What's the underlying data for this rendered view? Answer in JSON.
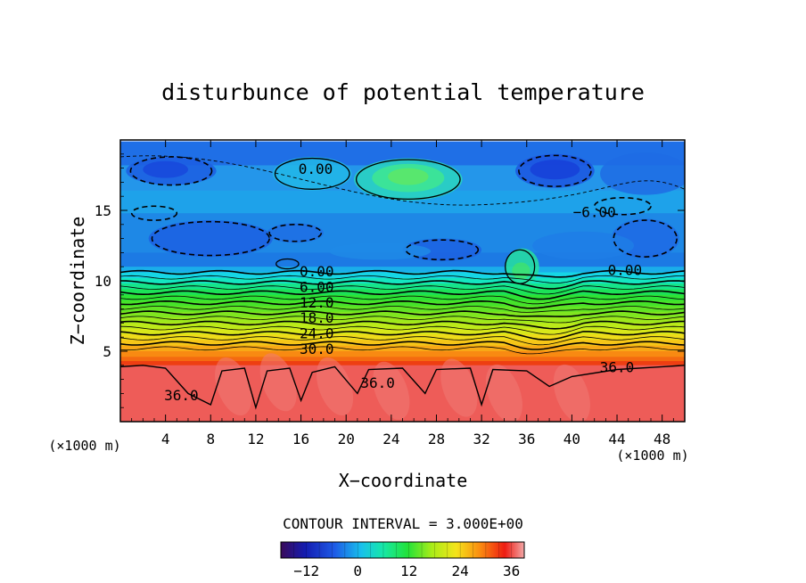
{
  "chart_data": {
    "type": "heatmap",
    "title": "disturbunce of potential temperature",
    "xlabel": "X−coordinate",
    "ylabel": "Z−coordinate",
    "x_unit_left": "(×1000 m)",
    "x_unit_right": "(×1000 m)",
    "xlim": [
      0,
      50
    ],
    "ylim": [
      0,
      20
    ],
    "x_ticks": [
      4,
      8,
      12,
      16,
      20,
      24,
      28,
      32,
      36,
      40,
      44,
      48
    ],
    "x_tick_labels": [
      "4",
      "8",
      "12",
      "16",
      "20",
      "24",
      "28",
      "32",
      "36",
      "40",
      "44",
      "48"
    ],
    "y_ticks": [
      5,
      10,
      15
    ],
    "y_tick_labels": [
      "5",
      "10",
      "15"
    ],
    "contour_interval_label": "CONTOUR INTERVAL = 3.000E+00",
    "colorbar": {
      "range": [
        -18,
        39
      ],
      "ticks": [
        -12,
        0,
        12,
        24,
        36
      ],
      "tick_labels": [
        "−12",
        "0",
        "12",
        "24",
        "36"
      ]
    },
    "contour_labels": [
      {
        "text": "0.00",
        "x": 17.3,
        "z": 17.8
      },
      {
        "text": "−6.00",
        "x": 42.0,
        "z": 14.7
      },
      {
        "text": "0.00",
        "x": 17.4,
        "z": 10.5
      },
      {
        "text": "0.00",
        "x": 44.7,
        "z": 10.6
      },
      {
        "text": "6.00",
        "x": 17.4,
        "z": 9.4
      },
      {
        "text": "12.0",
        "x": 17.4,
        "z": 8.3
      },
      {
        "text": "18.0",
        "x": 17.4,
        "z": 7.2
      },
      {
        "text": "24.0",
        "x": 17.4,
        "z": 6.1
      },
      {
        "text": "30.0",
        "x": 17.4,
        "z": 5.0
      },
      {
        "text": "36.0",
        "x": 5.4,
        "z": 1.7
      },
      {
        "text": "36.0",
        "x": 22.8,
        "z": 2.6
      },
      {
        "text": "36.0",
        "x": 44.0,
        "z": 3.7
      }
    ]
  }
}
